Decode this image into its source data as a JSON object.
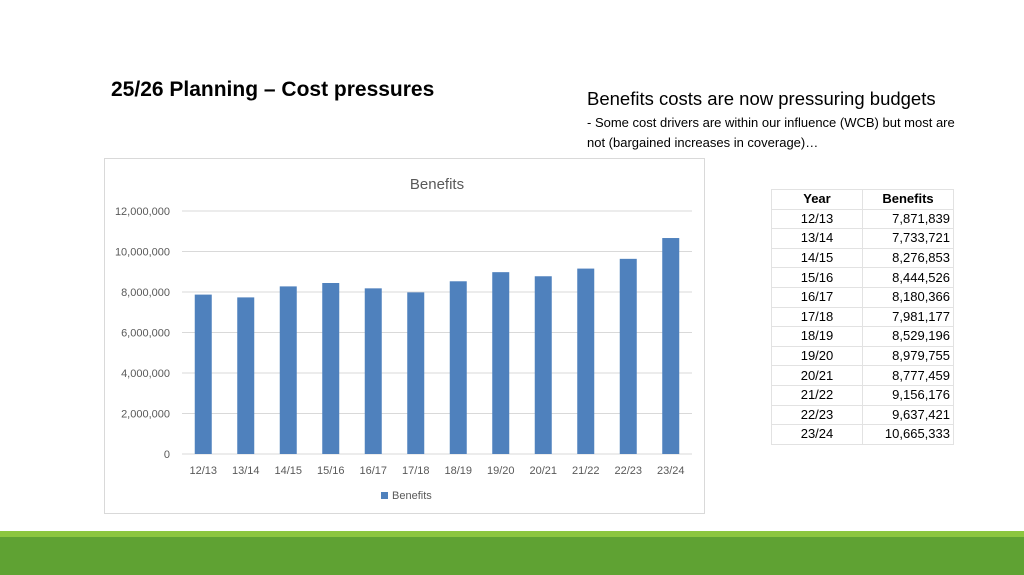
{
  "slide": {
    "title": "25/26 Planning – Cost pressures",
    "subtitle_main": "Benefits costs are now pressuring budgets",
    "subtitle_detail": "- Some cost drivers are within our influence (WCB) but most are not (bargained increases in coverage)…"
  },
  "table": {
    "headers": [
      "Year",
      "Benefits"
    ],
    "rows": [
      [
        "12/13",
        "7,871,839"
      ],
      [
        "13/14",
        "7,733,721"
      ],
      [
        "14/15",
        "8,276,853"
      ],
      [
        "15/16",
        "8,444,526"
      ],
      [
        "16/17",
        "8,180,366"
      ],
      [
        "17/18",
        "7,981,177"
      ],
      [
        "18/19",
        "8,529,196"
      ],
      [
        "19/20",
        "8,979,755"
      ],
      [
        "20/21",
        "8,777,459"
      ],
      [
        "21/22",
        "9,156,176"
      ],
      [
        "22/23",
        "9,637,421"
      ],
      [
        "23/24",
        "10,665,333"
      ]
    ]
  },
  "chart_data": {
    "type": "bar",
    "title": "Benefits",
    "xlabel": "",
    "ylabel": "",
    "categories": [
      "12/13",
      "13/14",
      "14/15",
      "15/16",
      "16/17",
      "17/18",
      "18/19",
      "19/20",
      "20/21",
      "21/22",
      "22/23",
      "23/24"
    ],
    "series": [
      {
        "name": "Benefits",
        "values": [
          7871839,
          7733721,
          8276853,
          8444526,
          8180366,
          7981177,
          8529196,
          8979755,
          8777459,
          9156176,
          9637421,
          10665333
        ]
      }
    ],
    "ylim": [
      0,
      12000000
    ],
    "yticks": [
      "0",
      "2,000,000",
      "4,000,000",
      "6,000,000",
      "8,000,000",
      "10,000,000",
      "12,000,000"
    ],
    "grid": true,
    "legend": "bottom",
    "colors": {
      "bar": "#4f81bd",
      "grid": "#d9d9d9",
      "text": "#595959"
    }
  },
  "colors": {
    "band_light": "#8cc63f",
    "band_dark": "#5fa233"
  }
}
